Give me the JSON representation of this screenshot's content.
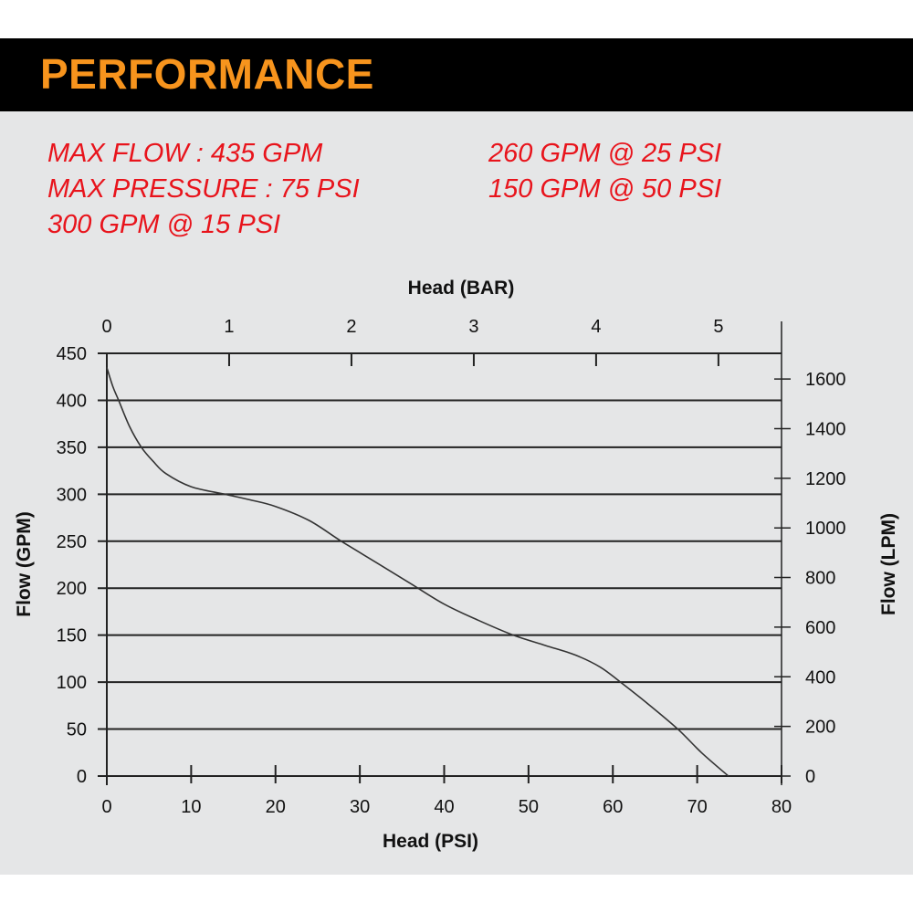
{
  "header": {
    "title": "PERFORMANCE"
  },
  "specs": [
    "MAX FLOW : 435 GPM",
    "MAX PRESSURE : 75 PSI",
    "300 GPM @ 15 PSI",
    "260 GPM @ 25 PSI",
    "150 GPM @ 50 PSI"
  ],
  "colors": {
    "header_bg": "#000000",
    "title": "#f7941d",
    "specs": "#e8141c",
    "panel": "#e5e6e7",
    "line": "#333333"
  },
  "chart_data": {
    "type": "line",
    "xlabel": "Head (PSI)",
    "ylabel": "Flow (GPM)",
    "x2label": "Head (BAR)",
    "y2label": "Flow (LPM)",
    "xlim": [
      0,
      80
    ],
    "ylim": [
      0,
      450
    ],
    "x_ticks": [
      "0",
      "10",
      "20",
      "30",
      "40",
      "50",
      "60",
      "70",
      "80"
    ],
    "y_ticks": [
      "0",
      "50",
      "100",
      "150",
      "200",
      "250",
      "300",
      "350",
      "400",
      "450"
    ],
    "x2_ticks": [
      "0",
      "1",
      "2",
      "3",
      "4",
      "5"
    ],
    "y2_ticks": [
      "0",
      "200",
      "400",
      "600",
      "800",
      "1000",
      "1200",
      "1400",
      "1600"
    ],
    "grid": "horizontal",
    "series": [
      {
        "x": [
          0,
          0.7,
          1.4,
          2.7,
          4.1,
          5.5,
          7,
          10,
          14,
          17,
          20,
          24,
          27.8,
          32,
          36,
          40,
          44,
          48.2,
          52,
          55.5,
          58.5,
          60.9,
          64,
          67.7,
          70.5,
          73.7
        ],
        "y": [
          435,
          415,
          400,
          372,
          350,
          335,
          322,
          308,
          300,
          294,
          287,
          272,
          250,
          227,
          205,
          183,
          166,
          150,
          139,
          129,
          116,
          100,
          78,
          50,
          25,
          0
        ]
      }
    ]
  }
}
